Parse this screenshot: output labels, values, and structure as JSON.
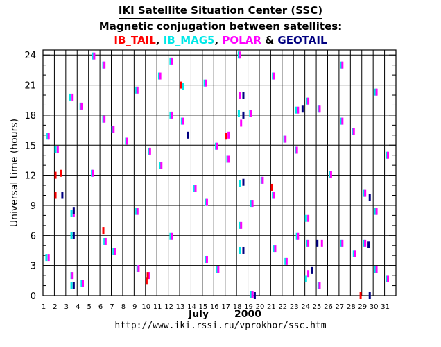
{
  "header": {
    "title": "IKI Satellite Situation Center (SSC)",
    "subtitle": "Magnetic conjugation between satellites:",
    "legend_names": [
      "IB_TAIL",
      ", ",
      "IB_MAG5",
      ", ",
      "POLAR",
      " & ",
      "GEOTAIL"
    ]
  },
  "footer": {
    "month": "July",
    "year": "2000",
    "url": "http://www.iki.rssi.ru/vprokhor/ssc.htm"
  },
  "colors": {
    "IB_TAIL": "#ff0000",
    "IB_MAG5": "#00e8e8",
    "POLAR": "#ff00ff",
    "GEOTAIL": "#000080",
    "legend_sep": "#000000"
  },
  "chart_data": {
    "type": "scatter",
    "xlabel": "",
    "ylabel": "Universal time (hours)",
    "x_ticks": [
      1,
      2,
      3,
      4,
      5,
      6,
      7,
      8,
      9,
      10,
      11,
      12,
      13,
      14,
      15,
      16,
      17,
      18,
      19,
      20,
      21,
      22,
      23,
      24,
      25,
      26,
      27,
      28,
      29,
      30,
      31
    ],
    "y_ticks": [
      0,
      3,
      6,
      9,
      12,
      15,
      18,
      21,
      24
    ],
    "xlim": [
      1,
      32
    ],
    "ylim": [
      0,
      24.5
    ],
    "grid": true,
    "series": [
      {
        "name": "IB_MAG5",
        "points": [
          [
            1.3,
            3.8
          ],
          [
            1.4,
            15.9
          ],
          [
            2.1,
            14.6
          ],
          [
            3.5,
            2.0
          ],
          [
            3.5,
            1.0
          ],
          [
            3.5,
            8.2
          ],
          [
            3.5,
            6.0
          ],
          [
            3.4,
            19.8
          ],
          [
            4.3,
            18.9
          ],
          [
            4.4,
            1.2
          ],
          [
            5.3,
            12.2
          ],
          [
            5.4,
            23.9
          ],
          [
            6.3,
            23.0
          ],
          [
            6.3,
            17.6
          ],
          [
            6.4,
            5.4
          ],
          [
            7.1,
            16.6
          ],
          [
            7.2,
            4.4
          ],
          [
            8.3,
            15.4
          ],
          [
            9.2,
            20.5
          ],
          [
            9.2,
            8.4
          ],
          [
            9.3,
            2.7
          ],
          [
            10.3,
            14.4
          ],
          [
            11.2,
            21.9
          ],
          [
            11.3,
            13.0
          ],
          [
            12.2,
            23.4
          ],
          [
            12.2,
            18.0
          ],
          [
            12.2,
            5.9
          ],
          [
            13.2,
            17.4
          ],
          [
            13.3,
            20.9
          ],
          [
            14.3,
            10.7
          ],
          [
            15.2,
            21.2
          ],
          [
            15.3,
            9.3
          ],
          [
            15.3,
            3.6
          ],
          [
            16.2,
            14.9
          ],
          [
            16.3,
            2.6
          ],
          [
            17.2,
            13.6
          ],
          [
            18.2,
            24.0
          ],
          [
            18.2,
            18.2
          ],
          [
            18.3,
            7.0
          ],
          [
            18.3,
            11.2
          ],
          [
            18.3,
            4.5
          ],
          [
            19.2,
            18.2
          ],
          [
            19.3,
            9.2
          ],
          [
            19.3,
            0.1
          ],
          [
            20.2,
            11.5
          ],
          [
            21.2,
            10.0
          ],
          [
            21.2,
            21.9
          ],
          [
            21.3,
            4.7
          ],
          [
            22.2,
            15.6
          ],
          [
            22.3,
            3.4
          ],
          [
            23.2,
            14.5
          ],
          [
            23.2,
            18.5
          ],
          [
            23.3,
            5.9
          ],
          [
            24.2,
            19.4
          ],
          [
            24.1,
            7.7
          ],
          [
            24.1,
            1.7
          ],
          [
            24.2,
            5.2
          ],
          [
            25.2,
            1.0
          ],
          [
            25.2,
            18.6
          ],
          [
            26.2,
            12.1
          ],
          [
            27.2,
            17.4
          ],
          [
            27.2,
            23.0
          ],
          [
            27.2,
            5.2
          ],
          [
            28.2,
            16.4
          ],
          [
            28.3,
            4.2
          ],
          [
            29.2,
            10.2
          ],
          [
            29.2,
            5.2
          ],
          [
            30.2,
            20.3
          ],
          [
            30.2,
            8.4
          ],
          [
            30.2,
            2.6
          ],
          [
            31.2,
            14.0
          ],
          [
            31.2,
            1.7
          ]
        ]
      },
      {
        "name": "POLAR",
        "points": [
          [
            1.5,
            3.8
          ],
          [
            1.5,
            15.9
          ],
          [
            2.3,
            14.6
          ],
          [
            3.6,
            2.0
          ],
          [
            3.7,
            8.2
          ],
          [
            3.6,
            19.8
          ],
          [
            4.4,
            18.9
          ],
          [
            4.5,
            1.2
          ],
          [
            5.4,
            12.2
          ],
          [
            5.5,
            23.9
          ],
          [
            6.4,
            23.0
          ],
          [
            6.4,
            17.6
          ],
          [
            6.5,
            5.4
          ],
          [
            7.2,
            16.6
          ],
          [
            7.3,
            4.4
          ],
          [
            8.4,
            15.4
          ],
          [
            9.3,
            20.5
          ],
          [
            9.3,
            8.4
          ],
          [
            9.4,
            2.7
          ],
          [
            10.3,
            2.0
          ],
          [
            10.4,
            14.4
          ],
          [
            11.3,
            21.9
          ],
          [
            11.4,
            13.0
          ],
          [
            12.3,
            23.4
          ],
          [
            12.3,
            18.0
          ],
          [
            12.3,
            5.9
          ],
          [
            13.3,
            17.4
          ],
          [
            14.4,
            10.7
          ],
          [
            15.3,
            21.2
          ],
          [
            15.4,
            9.3
          ],
          [
            15.4,
            3.6
          ],
          [
            16.3,
            14.9
          ],
          [
            16.4,
            2.6
          ],
          [
            17.3,
            13.6
          ],
          [
            17.3,
            16.0
          ],
          [
            18.3,
            24.0
          ],
          [
            18.3,
            20.0
          ],
          [
            18.4,
            17.2
          ],
          [
            18.4,
            7.0
          ],
          [
            19.3,
            18.2
          ],
          [
            19.4,
            9.2
          ],
          [
            19.4,
            0.1
          ],
          [
            20.3,
            11.5
          ],
          [
            21.3,
            10.0
          ],
          [
            21.3,
            21.9
          ],
          [
            21.4,
            4.7
          ],
          [
            22.3,
            15.6
          ],
          [
            22.4,
            3.4
          ],
          [
            23.3,
            14.5
          ],
          [
            23.4,
            18.5
          ],
          [
            23.4,
            5.9
          ],
          [
            24.3,
            19.4
          ],
          [
            24.3,
            7.7
          ],
          [
            24.3,
            2.2
          ],
          [
            24.3,
            5.2
          ],
          [
            25.3,
            1.0
          ],
          [
            25.3,
            18.6
          ],
          [
            25.5,
            5.2
          ],
          [
            26.3,
            12.1
          ],
          [
            27.3,
            17.4
          ],
          [
            27.3,
            23.0
          ],
          [
            27.3,
            5.2
          ],
          [
            28.3,
            16.4
          ],
          [
            28.4,
            4.2
          ],
          [
            29.3,
            10.2
          ],
          [
            29.3,
            5.2
          ],
          [
            30.3,
            20.3
          ],
          [
            30.3,
            8.4
          ],
          [
            30.3,
            2.6
          ],
          [
            31.3,
            14.0
          ],
          [
            31.3,
            1.7
          ]
        ]
      },
      {
        "name": "IB_TAIL",
        "points": [
          [
            2.1,
            12.0
          ],
          [
            2.1,
            10.0
          ],
          [
            2.6,
            12.2
          ],
          [
            6.3,
            6.5
          ],
          [
            10.1,
            1.5
          ],
          [
            10.2,
            2.0
          ],
          [
            13.1,
            21.0
          ],
          [
            17.1,
            15.9
          ],
          [
            21.1,
            10.8
          ],
          [
            28.9,
            0.0
          ]
        ]
      },
      {
        "name": "GEOTAIL",
        "points": [
          [
            2.7,
            10.0
          ],
          [
            3.7,
            8.5
          ],
          [
            3.7,
            6.0
          ],
          [
            3.7,
            1.0
          ],
          [
            13.7,
            16.0
          ],
          [
            18.6,
            18.0
          ],
          [
            18.6,
            20.0
          ],
          [
            18.6,
            4.5
          ],
          [
            18.6,
            11.3
          ],
          [
            19.6,
            0.0
          ],
          [
            23.8,
            18.6
          ],
          [
            24.6,
            2.5
          ],
          [
            25.1,
            5.2
          ],
          [
            29.7,
            0.0
          ],
          [
            29.7,
            9.8
          ],
          [
            29.6,
            5.1
          ]
        ]
      }
    ]
  }
}
